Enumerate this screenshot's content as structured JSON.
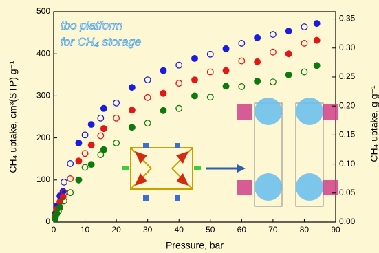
{
  "chart_data": {
    "type": "scatter",
    "annotation": [
      "tbo platform",
      "for CH₄ storage"
    ],
    "xlabel": "Pressure, bar",
    "ylabel": "CH₄ uptake, cm³(STP) g⁻¹",
    "y2label": "CH₄ uptake, g g⁻¹",
    "xlim": [
      0,
      90
    ],
    "xticks": [
      0,
      10,
      20,
      30,
      40,
      50,
      60,
      70,
      80,
      90
    ],
    "ylim": [
      0,
      500
    ],
    "yticks": [
      0,
      100,
      200,
      300,
      400,
      500
    ],
    "y2lim": [
      0,
      0.3625
    ],
    "y2ticks": [
      {
        "value": 0,
        "label": "0.00"
      },
      {
        "value": 0.05,
        "label": "0.05"
      },
      {
        "value": 0.1,
        "label": "0.10"
      },
      {
        "value": 0.15,
        "label": "0.15"
      },
      {
        "value": 0.2,
        "label": "0.20"
      },
      {
        "value": 0.25,
        "label": "0.25"
      },
      {
        "value": 0.3,
        "label": "0.30"
      },
      {
        "value": 0.35,
        "label": "0.35"
      }
    ],
    "series": [
      {
        "color": "#1c1ce0",
        "filled": true,
        "x": [
          0.5,
          1,
          2,
          3,
          8,
          12,
          16,
          25,
          35,
          45,
          55,
          65,
          75,
          84
        ],
        "values": [
          20,
          38,
          62,
          73,
          188,
          232,
          270,
          320,
          360,
          389,
          412,
          438,
          454,
          472
        ]
      },
      {
        "color": "#1c1ce0",
        "filled": false,
        "x": [
          3.3,
          5.3,
          10,
          15,
          20,
          30,
          40,
          50,
          60,
          70,
          80
        ],
        "values": [
          95,
          139,
          207,
          247,
          283,
          338,
          373,
          399,
          425,
          446,
          464
        ]
      },
      {
        "color": "#e01818",
        "filled": true,
        "x": [
          0.5,
          1,
          2,
          3,
          8,
          12,
          16,
          25,
          35,
          45,
          55,
          65,
          75,
          84
        ],
        "values": [
          15,
          30,
          48,
          60,
          145,
          183,
          222,
          266,
          306,
          338,
          360,
          381,
          400,
          432
        ]
      },
      {
        "color": "#e01818",
        "filled": false,
        "x": [
          3.3,
          5.3,
          10,
          15,
          20,
          30,
          40,
          50,
          60,
          70,
          80
        ],
        "values": [
          70,
          103,
          163,
          205,
          247,
          296,
          330,
          357,
          383,
          404,
          425
        ]
      },
      {
        "color": "#0c7a0c",
        "filled": true,
        "x": [
          0.5,
          1,
          2,
          8,
          12,
          16,
          25,
          35,
          45,
          55,
          65,
          75,
          84
        ],
        "values": [
          10,
          20,
          35,
          100,
          137,
          172,
          225,
          265,
          300,
          323,
          335,
          350,
          372
        ]
      },
      {
        "color": "#0c7a0c",
        "filled": false,
        "x": [
          0.5,
          1.5,
          3.3,
          5.3,
          10,
          15,
          20,
          30,
          40,
          50,
          60,
          70,
          80
        ],
        "values": [
          8,
          25,
          50,
          70,
          130,
          160,
          188,
          235,
          270,
          297,
          322,
          333,
          357
        ]
      }
    ]
  }
}
